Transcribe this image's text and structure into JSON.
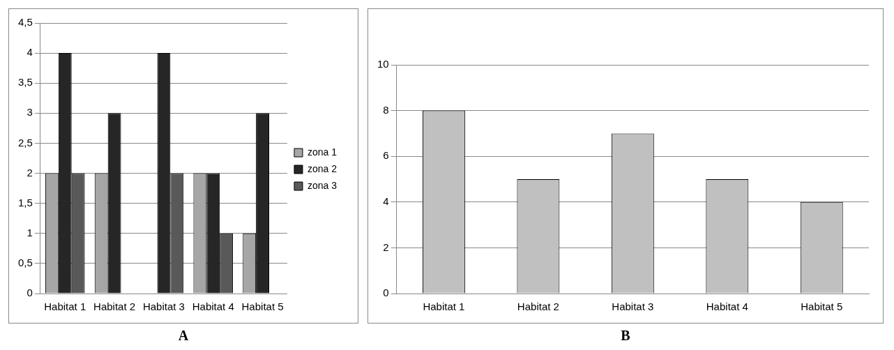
{
  "chart_data": [
    {
      "type": "bar",
      "categories": [
        "Habitat 1",
        "Habitat 2",
        "Habitat 3",
        "Habitat 4",
        "Habitat 5"
      ],
      "series": [
        {
          "name": "zona 1",
          "color": "#a6a6a6",
          "values": [
            2,
            2,
            0,
            2,
            1
          ]
        },
        {
          "name": "zona 2",
          "color": "#262626",
          "values": [
            4,
            3,
            4,
            2,
            3
          ]
        },
        {
          "name": "zona 3",
          "color": "#595959",
          "values": [
            2,
            0,
            2,
            1,
            0
          ]
        }
      ],
      "ylim": [
        0,
        4.5
      ],
      "yticks": [
        0,
        {
          "value": 0.5,
          "label": "0,5"
        },
        1,
        {
          "value": 1.5,
          "label": "1,5"
        },
        2,
        {
          "value": 2.5,
          "label": "2,5"
        },
        3,
        {
          "value": 3.5,
          "label": "3,5"
        },
        4,
        {
          "value": 4.5,
          "label": "4,5"
        }
      ],
      "grid": "y",
      "legend": "right",
      "annotations": [
        "A"
      ]
    },
    {
      "type": "bar",
      "categories": [
        "Habitat 1",
        "Habitat 2",
        "Habitat 3",
        "Habitat 4",
        "Habitat 5"
      ],
      "series": [
        {
          "color": "#c0c0c0",
          "values": [
            8,
            5,
            7,
            5,
            4
          ]
        }
      ],
      "ylim": [
        0,
        10
      ],
      "yticks": [
        0,
        2,
        4,
        6,
        8,
        10
      ],
      "grid": "y",
      "annotations": [
        "B"
      ]
    }
  ]
}
